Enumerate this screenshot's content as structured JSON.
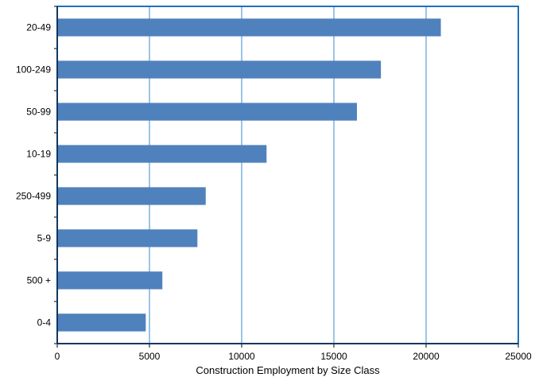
{
  "chart_data": {
    "type": "bar",
    "orientation": "horizontal",
    "categories": [
      "20-49",
      "100-249",
      "50-99",
      "10-19",
      "250-499",
      "5-9",
      "500 +",
      "0-4"
    ],
    "values": [
      20800,
      17550,
      16250,
      11350,
      8050,
      7600,
      5700,
      4800
    ],
    "xlabel": "Construction Employment by Size Class",
    "ylabel": "",
    "xlim": [
      0,
      25000
    ],
    "xticks": [
      "0",
      "5000",
      "10000",
      "15000",
      "20000",
      "25000"
    ],
    "grid": "vertical",
    "colors": {
      "bar": "#4f81bd",
      "plot_border": "#1f6fbf",
      "grid": "#3a88c8"
    }
  }
}
